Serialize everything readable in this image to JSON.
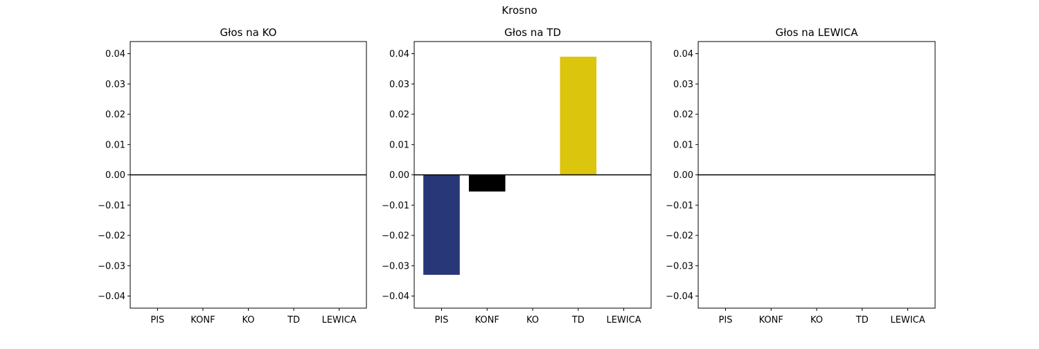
{
  "figure": {
    "title": "Krosno"
  },
  "chart_data": [
    {
      "type": "bar",
      "title": "Głos na KO",
      "categories": [
        "PIS",
        "KONF",
        "KO",
        "TD",
        "LEWICA"
      ],
      "values": [
        0,
        0,
        0,
        0,
        0
      ],
      "colors": [
        "#283777",
        "#000000",
        "#f68f2d",
        "#dcc50d",
        "#c8102e"
      ],
      "ylim": [
        -0.044,
        0.044
      ],
      "yticks": [
        -0.04,
        -0.03,
        -0.02,
        -0.01,
        0.0,
        0.01,
        0.02,
        0.03,
        0.04
      ],
      "ytick_labels": [
        "−0.04",
        "−0.03",
        "−0.02",
        "−0.01",
        "0.00",
        "0.01",
        "0.02",
        "0.03",
        "0.04"
      ],
      "zero_line": true,
      "grid": false
    },
    {
      "type": "bar",
      "title": "Głos na TD",
      "categories": [
        "PIS",
        "KONF",
        "KO",
        "TD",
        "LEWICA"
      ],
      "values": [
        -0.033,
        -0.0055,
        0,
        0.039,
        0
      ],
      "colors": [
        "#283777",
        "#000000",
        "#f68f2d",
        "#dcc50d",
        "#c8102e"
      ],
      "ylim": [
        -0.044,
        0.044
      ],
      "yticks": [
        -0.04,
        -0.03,
        -0.02,
        -0.01,
        0.0,
        0.01,
        0.02,
        0.03,
        0.04
      ],
      "ytick_labels": [
        "−0.04",
        "−0.03",
        "−0.02",
        "−0.01",
        "0.00",
        "0.01",
        "0.02",
        "0.03",
        "0.04"
      ],
      "zero_line": true,
      "grid": false
    },
    {
      "type": "bar",
      "title": "Głos na LEWICA",
      "categories": [
        "PIS",
        "KONF",
        "KO",
        "TD",
        "LEWICA"
      ],
      "values": [
        0,
        0,
        0,
        0,
        0
      ],
      "colors": [
        "#283777",
        "#000000",
        "#f68f2d",
        "#dcc50d",
        "#c8102e"
      ],
      "ylim": [
        -0.044,
        0.044
      ],
      "yticks": [
        -0.04,
        -0.03,
        -0.02,
        -0.01,
        0.0,
        0.01,
        0.02,
        0.03,
        0.04
      ],
      "ytick_labels": [
        "−0.04",
        "−0.03",
        "−0.02",
        "−0.01",
        "0.00",
        "0.01",
        "0.02",
        "0.03",
        "0.04"
      ],
      "zero_line": true,
      "grid": false
    }
  ]
}
